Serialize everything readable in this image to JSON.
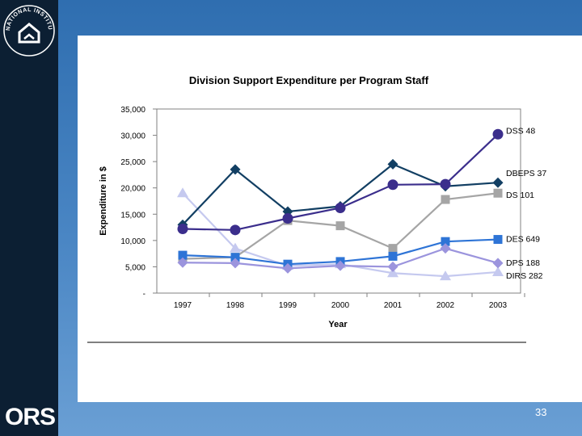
{
  "branding": {
    "nih_logo_text": "NATIONAL INSTITUTES OF HEALTH",
    "ors_logo": "ORS"
  },
  "page_number": "33",
  "colors": {
    "DSS": "#3b2e8c",
    "DBEPS": "#123f63",
    "DS": "#a5a5a5",
    "DES": "#2e74d6",
    "DPS": "#9b94dd",
    "DIRS": "#c5c9ef"
  },
  "chart_data": {
    "type": "line",
    "title": "Division Support Expenditure per Program Staff",
    "xlabel": "Year",
    "ylabel": "Expenditure in $",
    "categories": [
      "1997",
      "1998",
      "1999",
      "2000",
      "2001",
      "2002",
      "2003"
    ],
    "ylim": [
      0,
      35000
    ],
    "yticks": [
      0,
      5000,
      10000,
      15000,
      20000,
      25000,
      30000,
      35000
    ],
    "ytick_labels": [
      "-",
      "5,000",
      "10,000",
      "15,000",
      "20,000",
      "25,000",
      "30,000",
      "35,000"
    ],
    "series": [
      {
        "key": "DIRS",
        "name": "DIRS 282",
        "marker": "triangle",
        "values": [
          19000,
          8500,
          5200,
          5500,
          3800,
          3200,
          4000
        ]
      },
      {
        "key": "DS",
        "name": "DS 101",
        "marker": "square",
        "values": [
          6500,
          6800,
          13800,
          12800,
          8500,
          17800,
          19000
        ]
      },
      {
        "key": "DES",
        "name": "DES 649",
        "marker": "square",
        "values": [
          7200,
          6800,
          5500,
          6000,
          7000,
          9800,
          10200
        ]
      },
      {
        "key": "DPS",
        "name": "DPS 188",
        "marker": "diamond",
        "values": [
          5800,
          5700,
          4700,
          5200,
          5000,
          8500,
          5700
        ]
      },
      {
        "key": "DBEPS",
        "name": "DBEPS 37",
        "marker": "diamond",
        "values": [
          13000,
          23500,
          15500,
          16500,
          24500,
          20300,
          21000
        ]
      },
      {
        "key": "DSS",
        "name": "DSS 48",
        "marker": "circle",
        "values": [
          12200,
          12000,
          14200,
          16200,
          20600,
          20700,
          30200
        ]
      }
    ]
  }
}
